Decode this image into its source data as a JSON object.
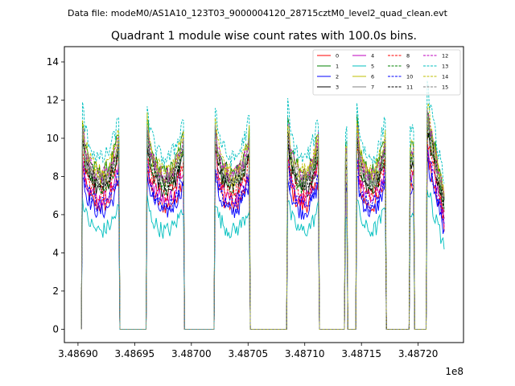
{
  "figure": {
    "suptitle": "Data file: modeM0/AS1A10_123T03_9000004120_28715cztM0_level2_quad_clean.evt",
    "title": "Quadrant 1 module wise count rates with 100.0s bins.",
    "offset_label": "1e8"
  },
  "chart_data": {
    "type": "line",
    "title": "Quadrant 1 module wise count rates with 100.0s bins.",
    "xlabel": "",
    "ylabel": "",
    "x_offset_multiplier": "1e8",
    "xlim": [
      3.486888,
      3.48724
    ],
    "ylim": [
      -0.7,
      14.8
    ],
    "xticks": [
      3.4869,
      3.48695,
      3.487,
      3.48705,
      3.4871,
      3.48715,
      3.4872
    ],
    "xtick_labels": [
      "3.48690",
      "3.48695",
      "3.48700",
      "3.48705",
      "3.48710",
      "3.48715",
      "3.48720"
    ],
    "yticks": [
      0,
      2,
      4,
      6,
      8,
      10,
      12,
      14
    ],
    "ytick_labels": [
      "0",
      "2",
      "4",
      "6",
      "8",
      "10",
      "12",
      "14"
    ],
    "grid": false,
    "legend": {
      "placement": "upper right",
      "columns": 4
    },
    "bin_width_s": 100,
    "active_segments": [
      {
        "start": 3.486904,
        "end": 3.486936
      },
      {
        "start": 3.486961,
        "end": 3.486993
      },
      {
        "start": 3.487021,
        "end": 3.487051
      },
      {
        "start": 3.487085,
        "end": 3.487112
      },
      {
        "start": 3.487136,
        "end": 3.487137
      },
      {
        "start": 3.487146,
        "end": 3.487171
      },
      {
        "start": 3.487193,
        "end": 3.487196
      },
      {
        "start": 3.487208,
        "end": 3.487224
      }
    ],
    "series": [
      {
        "name": "0",
        "color": "#ff0000",
        "dash": "solid",
        "mean": 7.0
      },
      {
        "name": "1",
        "color": "#008000",
        "dash": "solid",
        "mean": 8.9
      },
      {
        "name": "2",
        "color": "#0000ff",
        "dash": "solid",
        "mean": 6.7
      },
      {
        "name": "3",
        "color": "#000000",
        "dash": "solid",
        "mean": 7.9
      },
      {
        "name": "4",
        "color": "#bf00bf",
        "dash": "solid",
        "mean": 7.4
      },
      {
        "name": "5",
        "color": "#00bfbf",
        "dash": "solid",
        "mean": 5.6
      },
      {
        "name": "6",
        "color": "#bfbf00",
        "dash": "solid",
        "mean": 8.6
      },
      {
        "name": "7",
        "color": "#808080",
        "dash": "solid",
        "mean": 8.4
      },
      {
        "name": "8",
        "color": "#ff0000",
        "dash": "dashed",
        "mean": 7.7
      },
      {
        "name": "9",
        "color": "#008000",
        "dash": "dashed",
        "mean": 8.1
      },
      {
        "name": "10",
        "color": "#0000ff",
        "dash": "dashed",
        "mean": 7.1
      },
      {
        "name": "11",
        "color": "#000000",
        "dash": "dashed",
        "mean": 8.3
      },
      {
        "name": "12",
        "color": "#bf00bf",
        "dash": "dashed",
        "mean": 8.7
      },
      {
        "name": "13",
        "color": "#00bfbf",
        "dash": "dashed",
        "mean": 9.7
      },
      {
        "name": "14",
        "color": "#bfbf00",
        "dash": "dashed",
        "mean": 9.0
      },
      {
        "name": "15",
        "color": "#808080",
        "dash": "dashed",
        "mean": 8.5
      }
    ]
  }
}
